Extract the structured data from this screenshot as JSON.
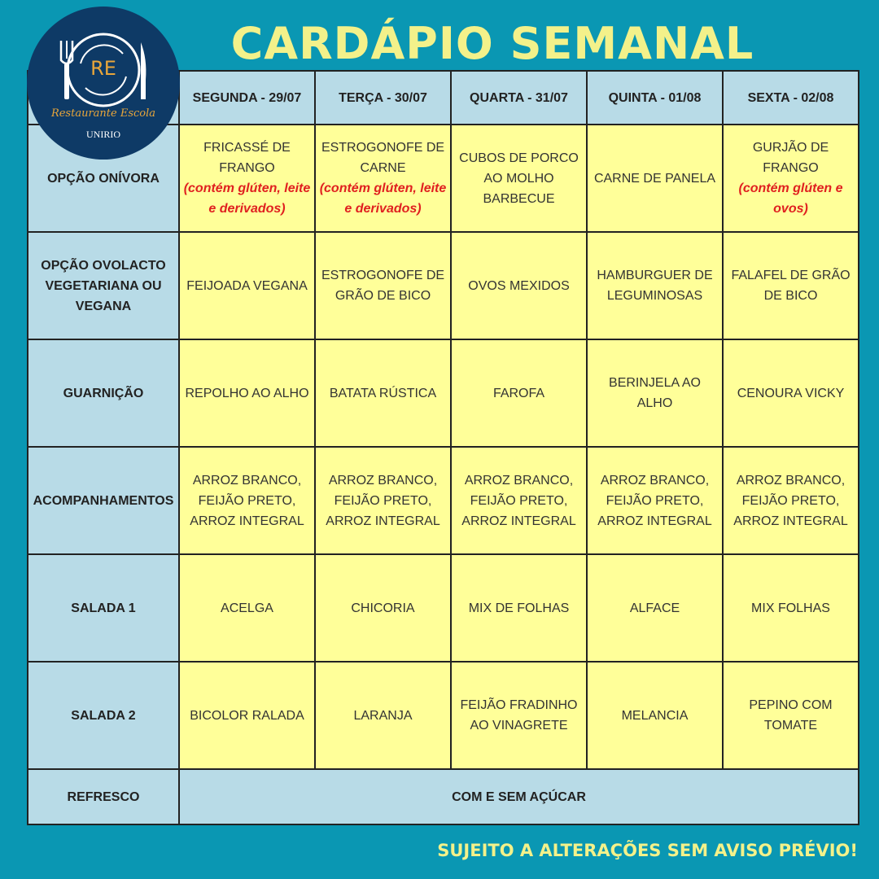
{
  "title": "CARDÁPIO SEMANAL",
  "logo": {
    "initials": "RE",
    "name": "Restaurante Escola",
    "institution": "UNIRIO"
  },
  "days": [
    "SEGUNDA - 29/07",
    "TERÇA - 30/07",
    "QUARTA - 31/07",
    "QUINTA - 01/08",
    "SEXTA - 02/08"
  ],
  "rows": [
    {
      "label": "OPÇÃO ONÍVORA",
      "cells": [
        {
          "text": "FRICASSÉ DE FRANGO",
          "note": "(contém glúten, leite e derivados)"
        },
        {
          "text": "ESTROGONOFE DE CARNE",
          "note": "(contém glúten, leite e derivados)"
        },
        {
          "text": "CUBOS DE PORCO AO MOLHO BARBECUE",
          "note": ""
        },
        {
          "text": "CARNE DE PANELA",
          "note": ""
        },
        {
          "text": "GURJÃO DE FRANGO",
          "note": "(contém glúten e ovos)"
        }
      ]
    },
    {
      "label": "OPÇÃO OVOLACTO VEGETARIANA OU VEGANA",
      "cells": [
        {
          "text": "FEIJOADA VEGANA"
        },
        {
          "text": "ESTROGONOFE DE GRÃO DE BICO"
        },
        {
          "text": "OVOS MEXIDOS"
        },
        {
          "text": "HAMBURGUER DE LEGUMINOSAS"
        },
        {
          "text": "FALAFEL DE GRÃO DE BICO"
        }
      ]
    },
    {
      "label": "GUARNIÇÃO",
      "cells": [
        {
          "text": "REPOLHO AO ALHO"
        },
        {
          "text": "BATATA RÚSTICA"
        },
        {
          "text": "FAROFA"
        },
        {
          "text": "BERINJELA AO ALHO"
        },
        {
          "text": "CENOURA VICKY"
        }
      ]
    },
    {
      "label": "ACOMPANHAMENTOS",
      "cells": [
        {
          "text": "ARROZ BRANCO, FEIJÃO PRETO, ARROZ INTEGRAL"
        },
        {
          "text": "ARROZ BRANCO, FEIJÃO PRETO, ARROZ INTEGRAL"
        },
        {
          "text": "ARROZ BRANCO, FEIJÃO PRETO, ARROZ INTEGRAL"
        },
        {
          "text": "ARROZ BRANCO, FEIJÃO PRETO, ARROZ INTEGRAL"
        },
        {
          "text": "ARROZ BRANCO, FEIJÃO PRETO, ARROZ INTEGRAL"
        }
      ]
    },
    {
      "label": "SALADA 1",
      "cells": [
        {
          "text": "ACELGA"
        },
        {
          "text": "CHICORIA"
        },
        {
          "text": "MIX DE FOLHAS"
        },
        {
          "text": "ALFACE"
        },
        {
          "text": "MIX FOLHAS"
        }
      ]
    },
    {
      "label": "SALADA 2",
      "cells": [
        {
          "text": "BICOLOR RALADA"
        },
        {
          "text": "LARANJA"
        },
        {
          "text": "FEIJÃO FRADINHO AO VINAGRETE"
        },
        {
          "text": "MELANCIA"
        },
        {
          "text": "PEPINO COM TOMATE"
        }
      ]
    }
  ],
  "refresco": {
    "label": "REFRESCO",
    "value": "COM E SEM AÇÚCAR"
  },
  "footer": "SUJEITO A ALTERAÇÕES SEM AVISO PRÉVIO!",
  "colors": {
    "background": "#0a97b3",
    "title": "#f3f18a",
    "cell": "#ffff99",
    "label_cell": "#b8dbe7",
    "allergen_note": "#e02020",
    "logo": "#0e3a66"
  }
}
